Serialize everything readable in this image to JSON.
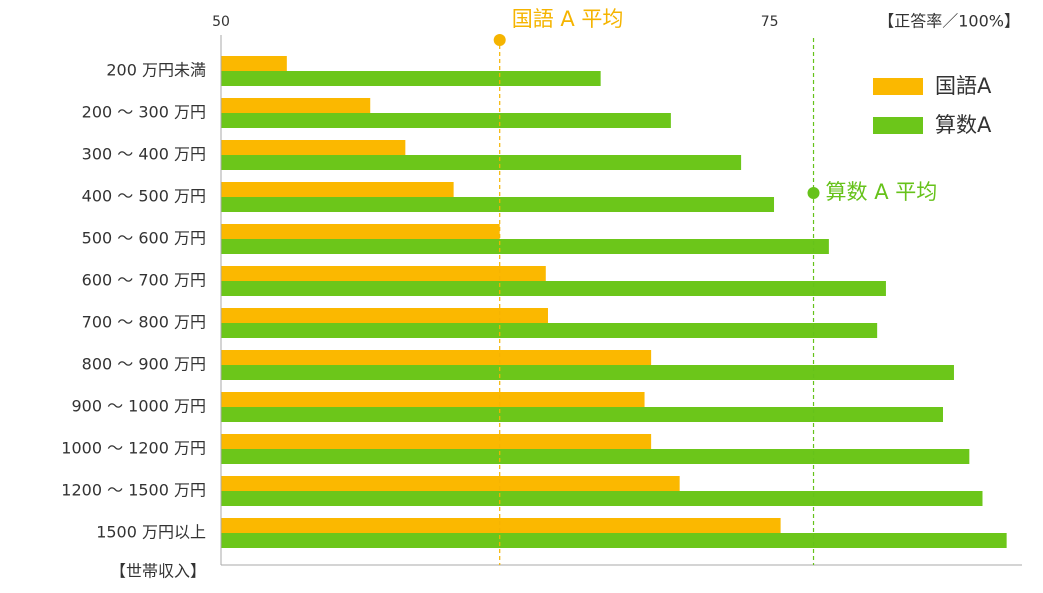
{
  "chart_data": {
    "type": "hbar",
    "x_unit_label": "【正答率／100%】",
    "y_axis_label": "【世帯収入】",
    "categories": [
      "200 万円未満",
      "200 〜 300 万円",
      "300 〜 400 万円",
      "400 〜 500 万円",
      "500 〜 600 万円",
      "600 〜 700 万円",
      "700 〜 800 万円",
      "800 〜 900 万円",
      "900 〜 1000 万円",
      "1000 〜 1200 万円",
      "1200 〜 1500 万円",
      "1500 万円以上"
    ],
    "series": [
      {
        "name": "国語A",
        "color": "#fbb800",
        "values": [
          53.0,
          56.8,
          58.4,
          60.6,
          62.7,
          64.8,
          64.9,
          69.6,
          69.3,
          69.6,
          70.9,
          75.5
        ]
      },
      {
        "name": "算数A",
        "color": "#6cc61a",
        "values": [
          67.3,
          70.5,
          73.7,
          75.2,
          77.7,
          80.3,
          79.9,
          83.4,
          82.9,
          84.1,
          84.7,
          85.8
        ]
      }
    ],
    "reference_lines": [
      {
        "label": "国語 A 平均",
        "value": 62.7,
        "color": "#f5b400"
      },
      {
        "label": "算数 A 平均",
        "value": 77.0,
        "color": "#66c21a"
      }
    ],
    "xlim": [
      50,
      86.5
    ],
    "xticks": [
      50,
      75
    ],
    "legend": "top-right"
  }
}
